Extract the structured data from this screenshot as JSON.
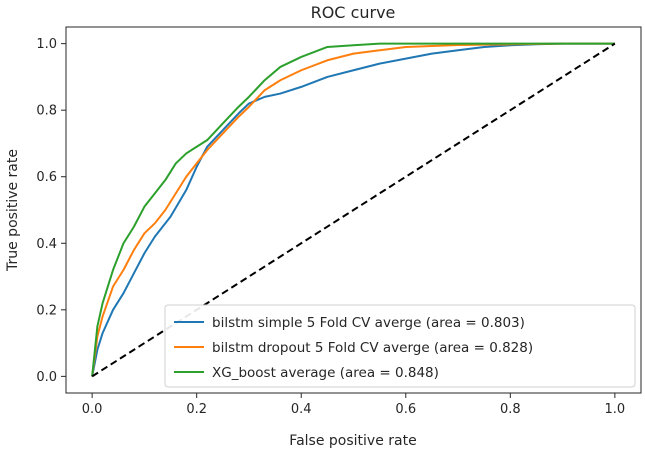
{
  "chart_data": {
    "type": "line",
    "title": "ROC curve",
    "xlabel": "False positive rate",
    "ylabel": "True positive rate",
    "xlim": [
      -0.05,
      1.05
    ],
    "ylim": [
      -0.05,
      1.05
    ],
    "xticks": [
      "0.0",
      "0.2",
      "0.4",
      "0.6",
      "0.8",
      "1.0"
    ],
    "yticks": [
      "0.0",
      "0.2",
      "0.4",
      "0.6",
      "0.8",
      "1.0"
    ],
    "grid": false,
    "legend_position": "lower-right",
    "series": [
      {
        "name": "bilstm simple 5 Fold CV averge (area = 0.803)",
        "color": "#1f77b4",
        "style": "solid",
        "x": [
          0,
          0.01,
          0.02,
          0.04,
          0.06,
          0.08,
          0.1,
          0.12,
          0.15,
          0.18,
          0.2,
          0.22,
          0.25,
          0.28,
          0.3,
          0.33,
          0.36,
          0.4,
          0.45,
          0.5,
          0.55,
          0.6,
          0.65,
          0.7,
          0.75,
          0.8,
          0.85,
          0.9,
          1.0
        ],
        "y": [
          0,
          0.08,
          0.13,
          0.2,
          0.25,
          0.31,
          0.37,
          0.42,
          0.48,
          0.56,
          0.63,
          0.69,
          0.74,
          0.79,
          0.82,
          0.84,
          0.85,
          0.87,
          0.9,
          0.92,
          0.94,
          0.955,
          0.97,
          0.98,
          0.99,
          0.995,
          0.998,
          1.0,
          1.0
        ]
      },
      {
        "name": "bilstm dropout 5 Fold CV averge (area = 0.828)",
        "color": "#ff7f0e",
        "style": "solid",
        "x": [
          0,
          0.01,
          0.02,
          0.04,
          0.06,
          0.08,
          0.1,
          0.12,
          0.14,
          0.16,
          0.18,
          0.2,
          0.22,
          0.25,
          0.28,
          0.3,
          0.33,
          0.36,
          0.4,
          0.45,
          0.5,
          0.55,
          0.6,
          0.65,
          0.7,
          0.8,
          0.9,
          1.0
        ],
        "y": [
          0,
          0.12,
          0.18,
          0.27,
          0.32,
          0.38,
          0.43,
          0.46,
          0.5,
          0.55,
          0.6,
          0.64,
          0.68,
          0.73,
          0.78,
          0.81,
          0.86,
          0.89,
          0.92,
          0.95,
          0.97,
          0.98,
          0.99,
          0.993,
          0.996,
          0.998,
          1.0,
          1.0
        ]
      },
      {
        "name": "XG_boost average (area = 0.848)",
        "color": "#2ca02c",
        "style": "solid",
        "x": [
          0,
          0.01,
          0.02,
          0.04,
          0.06,
          0.08,
          0.1,
          0.12,
          0.14,
          0.16,
          0.18,
          0.2,
          0.22,
          0.25,
          0.28,
          0.3,
          0.33,
          0.36,
          0.4,
          0.45,
          0.5,
          0.55,
          0.6,
          0.7,
          0.8,
          0.9,
          1.0
        ],
        "y": [
          0,
          0.15,
          0.22,
          0.32,
          0.4,
          0.45,
          0.51,
          0.55,
          0.59,
          0.64,
          0.67,
          0.69,
          0.71,
          0.76,
          0.81,
          0.84,
          0.89,
          0.93,
          0.96,
          0.99,
          0.995,
          1.0,
          1.0,
          1.0,
          1.0,
          1.0,
          1.0
        ]
      },
      {
        "name": "",
        "color": "#000000",
        "style": "dashed",
        "x": [
          0,
          1
        ],
        "y": [
          0,
          1
        ]
      }
    ]
  }
}
